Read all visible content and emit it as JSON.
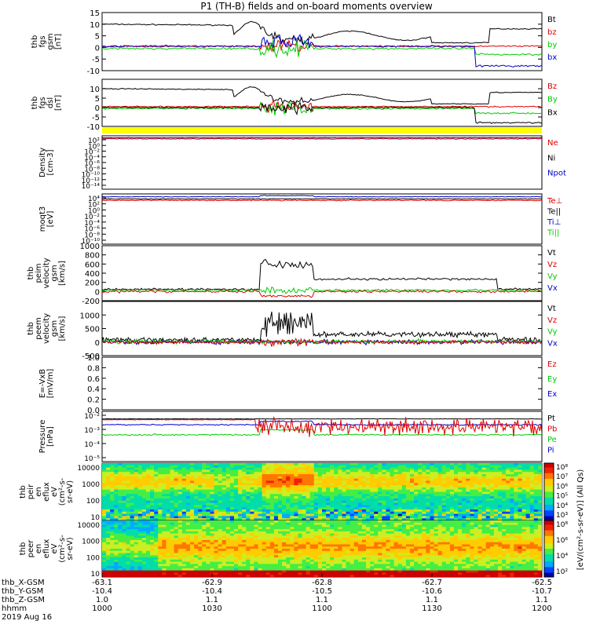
{
  "title": "P1 (TH-B) fields and on-board moments overview",
  "colors": {
    "black": "#000000",
    "red": "#dd0000",
    "green": "#00cc00",
    "blue": "#0000cc",
    "yellow": "#ffff00"
  },
  "chart_data": [
    {
      "type": "line",
      "panel": "fgs-gsm",
      "ylabel": [
        "thb",
        "fgs",
        "gsm",
        "[nT]"
      ],
      "ylim": [
        -10,
        15
      ],
      "yticks": [
        -10,
        -5,
        0,
        5,
        10,
        15
      ],
      "series": [
        {
          "name": "Bt",
          "color": "black"
        },
        {
          "name": "bz",
          "color": "red"
        },
        {
          "name": "by",
          "color": "green"
        },
        {
          "name": "bx",
          "color": "blue"
        }
      ]
    },
    {
      "type": "line",
      "panel": "fgs-dsl",
      "ylabel": [
        "thb",
        "fgs",
        "dsl",
        "[nT]"
      ],
      "ylim": [
        -10,
        15
      ],
      "yticks": [
        -10,
        -5,
        0,
        5,
        10
      ],
      "series": [
        {
          "name": "Bz",
          "color": "red"
        },
        {
          "name": "By",
          "color": "green"
        },
        {
          "name": "Bx",
          "color": "black"
        }
      ]
    },
    {
      "type": "line",
      "panel": "density",
      "ylabel": [
        "Density",
        "[cm-3]"
      ],
      "log": true,
      "ylim": [
        -14,
        2
      ],
      "ytick_labels": [
        "10²",
        "10⁰",
        "10⁻²",
        "10⁻⁴",
        "10⁻⁶",
        "10⁻⁸",
        "10⁻¹⁰",
        "10⁻¹²",
        "10⁻¹⁴"
      ],
      "series": [
        {
          "name": "Ne",
          "color": "red"
        },
        {
          "name": "Ni",
          "color": "black"
        },
        {
          "name": "Npot",
          "color": "blue"
        }
      ]
    },
    {
      "type": "line",
      "panel": "temperature",
      "ylabel": [
        "moqt3",
        "[eV]"
      ],
      "log": true,
      "ylim": [
        -10,
        4
      ],
      "ytick_labels": [
        "10⁴",
        "10²",
        "10⁰",
        "10⁻²",
        "10⁻⁴",
        "10⁻⁶",
        "10⁻⁸",
        "10⁻¹⁰"
      ],
      "series": [
        {
          "name": "Te⊥",
          "color": "red"
        },
        {
          "name": "Te||",
          "color": "black"
        },
        {
          "name": "Ti⊥",
          "color": "blue"
        },
        {
          "name": "Ti||",
          "color": "green"
        }
      ]
    },
    {
      "type": "line",
      "panel": "peim-velocity",
      "ylabel": [
        "thb",
        "peim",
        "velocity",
        "gsm",
        "[km/s]"
      ],
      "ylim": [
        -200,
        1000
      ],
      "yticks": [
        -200,
        0,
        200,
        400,
        600,
        800,
        1000
      ],
      "series": [
        {
          "name": "Vt",
          "color": "black"
        },
        {
          "name": "Vz",
          "color": "red"
        },
        {
          "name": "Vy",
          "color": "green"
        },
        {
          "name": "Vx",
          "color": "blue"
        }
      ]
    },
    {
      "type": "line",
      "panel": "peem-velocity",
      "ylabel": [
        "thb",
        "peem",
        "velocity",
        "gsm",
        "[km/s]"
      ],
      "ylim": [
        -500,
        1500
      ],
      "yticks": [
        -500,
        0,
        500,
        1000
      ],
      "series": [
        {
          "name": "Vt",
          "color": "black"
        },
        {
          "name": "Vz",
          "color": "red"
        },
        {
          "name": "Vy",
          "color": "green"
        },
        {
          "name": "Vx",
          "color": "blue"
        }
      ]
    },
    {
      "type": "line",
      "panel": "efield",
      "ylabel": [
        "E=-VxB",
        "[mV/m]"
      ],
      "ylim": [
        0,
        1
      ],
      "yticks": [
        0.0,
        0.2,
        0.4,
        0.6,
        0.8,
        1.0
      ],
      "series": [
        {
          "name": "Ez",
          "color": "red"
        },
        {
          "name": "Ey",
          "color": "green"
        },
        {
          "name": "Ex",
          "color": "blue"
        }
      ]
    },
    {
      "type": "line",
      "panel": "pressure",
      "ylabel": [
        "Pressure",
        "[nPa]"
      ],
      "log": true,
      "ylim": [
        -6,
        0
      ],
      "ytick_labels": [
        "10⁻²",
        "10⁻³",
        "10⁻⁴",
        "10⁻⁵"
      ],
      "series": [
        {
          "name": "Pt",
          "color": "black"
        },
        {
          "name": "Pb",
          "color": "red"
        },
        {
          "name": "Pe",
          "color": "green"
        },
        {
          "name": "Pi",
          "color": "blue"
        }
      ]
    },
    {
      "type": "heatmap",
      "panel": "peir-eflux",
      "ylabel": [
        "thb",
        "peir",
        "en",
        "eflux",
        "eV",
        "(cm²-s-",
        "sr-eV)"
      ],
      "ytick_labels": [
        "10000",
        "1000",
        "100",
        "10"
      ],
      "colorbar_ticks": [
        "10⁸",
        "10⁷",
        "10⁶",
        "10⁵",
        "10⁴",
        "10³"
      ]
    },
    {
      "type": "heatmap",
      "panel": "peer-eflux",
      "ylabel": [
        "thb",
        "peer",
        "en",
        "eflux",
        "eV",
        "(cm²-s-",
        "sr-eV)"
      ],
      "ytick_labels": [
        "10000",
        "1000",
        "100",
        "10"
      ],
      "colorbar_ticks": [
        "10⁸",
        "10⁶",
        "10⁴",
        "10²"
      ]
    }
  ],
  "colorbar_label": "[eV/(cm²-s-sr-eV)] (All Qs)",
  "x_axis": {
    "row_labels": [
      "thb_X-GSM",
      "thb_Y-GSM",
      "thb_Z-GSM",
      "hhmm",
      "2019 Aug 16"
    ],
    "x_gsm": [
      "-63.1",
      "-62.9",
      "-62.8",
      "-62.7",
      "-62.5"
    ],
    "y_gsm": [
      "-10.4",
      "-10.4",
      "-10.5",
      "-10.6",
      "-10.7"
    ],
    "z_gsm": [
      "1.0",
      "1.1",
      "1.1",
      "1.1",
      "1.1"
    ],
    "hhmm": [
      "1000",
      "1030",
      "1100",
      "1130",
      "1200"
    ]
  }
}
